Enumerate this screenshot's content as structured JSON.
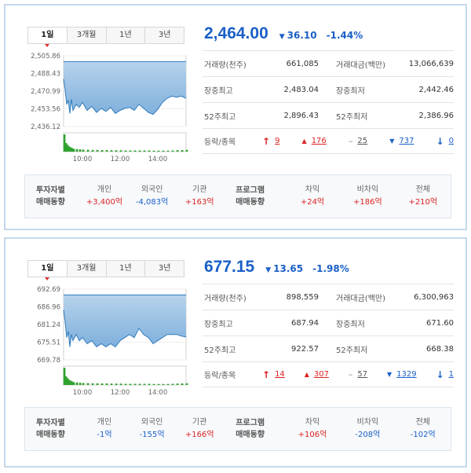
{
  "colors": {
    "up": "#dd2222",
    "down": "#1a5fc7",
    "area_fill": "#7fb0dc",
    "area_line": "#2f7bbf",
    "volume": "#2ea22e"
  },
  "panels": [
    {
      "tabs": [
        {
          "label": "1일"
        },
        {
          "label": "3개월"
        },
        {
          "label": "1년"
        },
        {
          "label": "3년"
        }
      ],
      "price": "2,464.00",
      "change": "36.10",
      "change_dir_icon": "down-triangle-icon",
      "change_pct": "-1.44%",
      "stats": {
        "volume_label": "거래량(천주)",
        "volume": "661,085",
        "amount_label": "거래대금(백만)",
        "amount": "13,066,639",
        "high_label": "장중최고",
        "high": "2,483.04",
        "low_label": "장중최저",
        "low": "2,442.46",
        "w52_high_label": "52주최고",
        "w52_high": "2,896.43",
        "w52_low_label": "52주최저",
        "w52_low": "2,386.96",
        "updown_label": "등락/종목",
        "upper_limit": "9",
        "rise": "176",
        "unchanged": "25",
        "fall": "737",
        "lower_limit": "0"
      },
      "flows": {
        "investor_label_1": "투자자별",
        "investor_label_2": "매매동향",
        "individual_label": "개인",
        "individual": "+3,400억",
        "foreign_label": "외국인",
        "foreign": "-4,083억",
        "institution_label": "기관",
        "institution": "+163억",
        "program_label_1": "프로그램",
        "program_label_2": "매매동향",
        "arbitrage_label": "차익",
        "arbitrage": "+24억",
        "nonarbitrage_label": "비차익",
        "nonarbitrage": "+186억",
        "total_label": "전체",
        "total": "+210억"
      },
      "chart_data": {
        "type": "area",
        "y_ticks": [
          "2,505.86",
          "2,488.43",
          "2,470.99",
          "2,453.56",
          "2,436.12"
        ],
        "ylim": [
          2436.12,
          2505.86
        ],
        "x_ticks": [
          "10:00",
          "12:00",
          "14:00"
        ],
        "reference": 2500.1,
        "x": [
          "09:00",
          "09:05",
          "09:10",
          "09:15",
          "09:20",
          "09:25",
          "09:30",
          "09:40",
          "09:50",
          "10:00",
          "10:15",
          "10:30",
          "10:45",
          "11:00",
          "11:15",
          "11:30",
          "11:45",
          "12:00",
          "12:15",
          "12:30",
          "12:45",
          "13:00",
          "13:15",
          "13:30",
          "13:45",
          "14:00",
          "14:15",
          "14:30",
          "14:45",
          "15:00",
          "15:15",
          "15:30"
        ],
        "values": [
          2483,
          2472,
          2458,
          2462,
          2449,
          2463,
          2452,
          2458,
          2455,
          2460,
          2452,
          2456,
          2450,
          2454,
          2451,
          2455,
          2449,
          2452,
          2454,
          2455,
          2452,
          2458,
          2454,
          2450,
          2448,
          2453,
          2460,
          2464,
          2466,
          2465,
          2466,
          2464
        ],
        "volume": [
          10,
          5,
          4,
          3,
          2.5,
          2,
          1.6,
          1.5,
          1.3,
          1.2,
          1.1,
          1,
          1,
          0.9,
          0.9,
          0.8,
          0.8,
          0.8,
          0.7,
          0.7,
          0.7,
          0.7,
          0.7,
          0.7,
          0.6,
          0.6,
          0.6,
          0.6,
          0.7,
          0.8,
          0.9,
          1
        ]
      }
    },
    {
      "tabs": [
        {
          "label": "1일"
        },
        {
          "label": "3개월"
        },
        {
          "label": "1년"
        },
        {
          "label": "3년"
        }
      ],
      "price": "677.15",
      "change": "13.65",
      "change_dir_icon": "down-triangle-icon",
      "change_pct": "-1.98%",
      "stats": {
        "volume_label": "거래량(천주)",
        "volume": "898,559",
        "amount_label": "거래대금(백만)",
        "amount": "6,300,963",
        "high_label": "장중최고",
        "high": "687.94",
        "low_label": "장중최저",
        "low": "671.60",
        "w52_high_label": "52주최고",
        "w52_high": "922.57",
        "w52_low_label": "52주최저",
        "w52_low": "668.38",
        "updown_label": "등락/종목",
        "upper_limit": "14",
        "rise": "307",
        "unchanged": "57",
        "fall": "1329",
        "lower_limit": "1"
      },
      "flows": {
        "investor_label_1": "투자자별",
        "investor_label_2": "매매동향",
        "individual_label": "개인",
        "individual": "-1억",
        "foreign_label": "외국인",
        "foreign": "-155억",
        "institution_label": "기관",
        "institution": "+166억",
        "program_label_1": "프로그램",
        "program_label_2": "매매동향",
        "arbitrage_label": "차익",
        "arbitrage": "+106억",
        "nonarbitrage_label": "비차익",
        "nonarbitrage": "-208억",
        "total_label": "전체",
        "total": "-102억"
      },
      "chart_data": {
        "type": "area",
        "y_ticks": [
          "692.69",
          "686.96",
          "681.24",
          "675.51",
          "669.78"
        ],
        "ylim": [
          669.78,
          692.69
        ],
        "x_ticks": [
          "10:00",
          "12:00",
          "14:00"
        ],
        "reference": 690.8,
        "x": [
          "09:00",
          "09:05",
          "09:10",
          "09:15",
          "09:20",
          "09:25",
          "09:30",
          "09:40",
          "09:50",
          "10:00",
          "10:15",
          "10:30",
          "10:45",
          "11:00",
          "11:15",
          "11:30",
          "11:45",
          "12:00",
          "12:15",
          "12:30",
          "12:45",
          "13:00",
          "13:15",
          "13:30",
          "13:45",
          "14:00",
          "14:15",
          "14:30",
          "14:45",
          "15:00",
          "15:15",
          "15:30"
        ],
        "values": [
          686,
          682,
          677,
          679,
          674,
          678,
          676,
          678,
          676,
          677,
          675,
          676,
          674,
          675,
          674,
          675,
          674,
          676,
          677,
          678,
          677,
          680,
          678,
          677,
          675,
          676,
          677,
          678,
          678,
          678,
          677.5,
          677.2
        ],
        "volume": [
          10,
          5,
          4,
          3,
          2.5,
          2,
          1.6,
          1.5,
          1.3,
          1.2,
          1.1,
          1,
          1,
          0.9,
          0.9,
          0.8,
          0.8,
          0.8,
          0.7,
          0.7,
          0.7,
          0.7,
          0.7,
          0.7,
          0.6,
          0.6,
          0.6,
          0.6,
          0.7,
          0.8,
          0.9,
          1
        ]
      }
    }
  ]
}
